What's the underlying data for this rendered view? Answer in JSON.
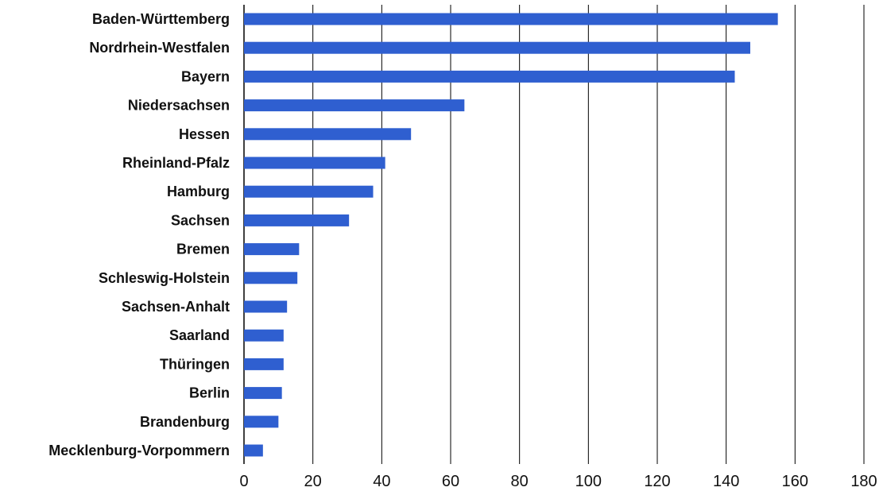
{
  "chart_data": {
    "type": "bar",
    "orientation": "horizontal",
    "categories": [
      "Baden-Württemberg",
      "Nordrhein-Westfalen",
      "Bayern",
      "Niedersachsen",
      "Hessen",
      "Rheinland-Pfalz",
      "Hamburg",
      "Sachsen",
      "Bremen",
      "Schleswig-Holstein",
      "Sachsen-Anhalt",
      "Saarland",
      "Thüringen",
      "Berlin",
      "Brandenburg",
      "Mecklenburg-Vorpommern"
    ],
    "values": [
      155,
      147,
      142.5,
      64,
      48.5,
      41,
      37.5,
      30.5,
      16,
      15.5,
      12.5,
      11.5,
      11.5,
      11,
      10,
      5.5
    ],
    "title": "",
    "xlabel": "",
    "ylabel": "",
    "xlim": [
      0,
      180
    ],
    "ticks": [
      "0",
      "20",
      "40",
      "60",
      "80",
      "100",
      "120",
      "140",
      "160",
      "180"
    ],
    "grid": true,
    "legend": "none",
    "bar_color": "#2f5fd0"
  }
}
